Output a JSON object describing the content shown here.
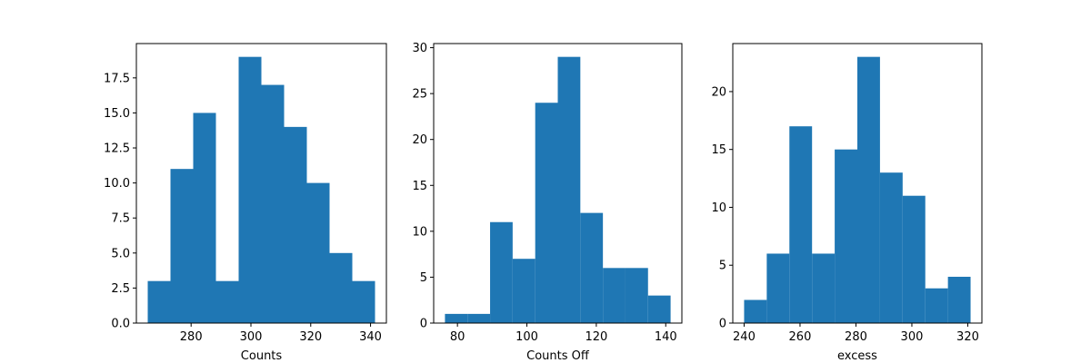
{
  "colors": {
    "bar": "#1f77b4",
    "axis": "#000000",
    "background": "#ffffff"
  },
  "chart_data": [
    {
      "type": "bar",
      "histogram": true,
      "title": "",
      "xlabel": "Counts",
      "ylabel": "",
      "bin_edges": [
        265.5,
        273.1,
        280.7,
        288.3,
        295.9,
        303.5,
        311.1,
        318.7,
        326.3,
        333.9,
        341.5
      ],
      "values": [
        3,
        11,
        15,
        3,
        19,
        17,
        14,
        10,
        5,
        3
      ],
      "xlim": [
        261.7,
        345.3
      ],
      "ylim": [
        0,
        19.95
      ],
      "xticks": [
        280,
        300,
        320,
        340
      ],
      "xtick_labels": [
        "280",
        "300",
        "320",
        "340"
      ],
      "yticks": [
        0,
        2.5,
        5,
        7.5,
        10,
        12.5,
        15,
        17.5
      ],
      "ytick_labels": [
        "0.0",
        "2.5",
        "5.0",
        "7.5",
        "10.0",
        "12.5",
        "15.0",
        "17.5"
      ],
      "grid": false
    },
    {
      "type": "bar",
      "histogram": true,
      "title": "",
      "xlabel": "Counts Off",
      "ylabel": "",
      "bin_edges": [
        76.4,
        82.9,
        89.4,
        95.9,
        102.4,
        108.9,
        115.4,
        121.9,
        128.4,
        134.9,
        141.4
      ],
      "values": [
        1,
        1,
        11,
        7,
        24,
        29,
        12,
        6,
        6,
        3
      ],
      "xlim": [
        73.15,
        144.65
      ],
      "ylim": [
        0,
        30.45
      ],
      "xticks": [
        80,
        100,
        120,
        140
      ],
      "xtick_labels": [
        "80",
        "100",
        "120",
        "140"
      ],
      "yticks": [
        0,
        5,
        10,
        15,
        20,
        25,
        30
      ],
      "ytick_labels": [
        "0",
        "5",
        "10",
        "15",
        "20",
        "25",
        "30"
      ],
      "grid": false
    },
    {
      "type": "bar",
      "histogram": true,
      "title": "",
      "xlabel": "excess",
      "ylabel": "",
      "bin_edges": [
        240.0,
        248.1,
        256.2,
        264.3,
        272.4,
        280.5,
        288.6,
        296.7,
        304.8,
        312.9,
        321.0
      ],
      "values": [
        2,
        6,
        17,
        6,
        15,
        23,
        13,
        11,
        3,
        4
      ],
      "xlim": [
        235.95,
        325.05
      ],
      "ylim": [
        0,
        24.15
      ],
      "xticks": [
        240,
        260,
        280,
        300,
        320
      ],
      "xtick_labels": [
        "240",
        "260",
        "280",
        "300",
        "320"
      ],
      "yticks": [
        0,
        5,
        10,
        15,
        20
      ],
      "ytick_labels": [
        "0",
        "5",
        "10",
        "15",
        "20"
      ],
      "grid": false
    }
  ]
}
